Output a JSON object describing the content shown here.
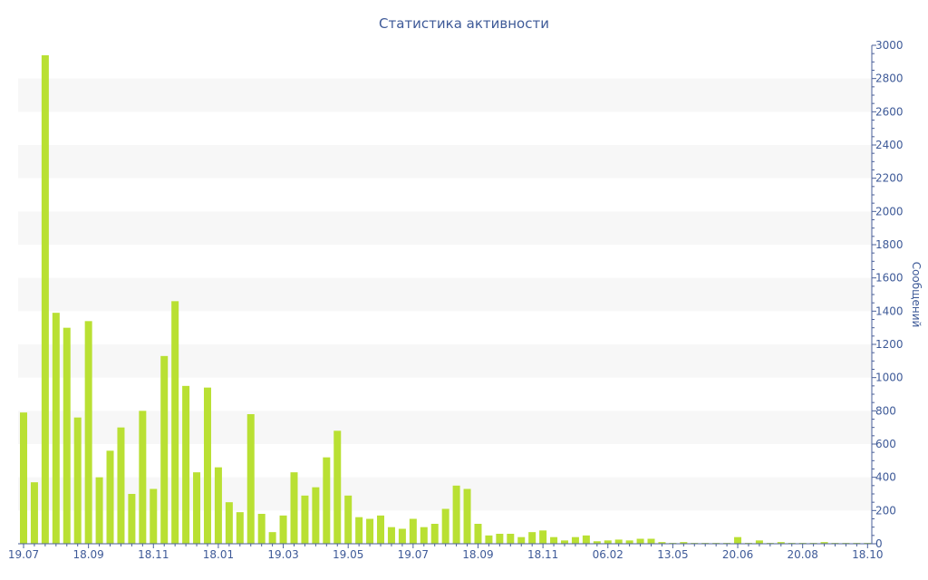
{
  "chart_data": {
    "type": "bar",
    "title": "Статистика активности",
    "ylabel": "Сообщений",
    "xlabel": "",
    "ylim": [
      0,
      3000
    ],
    "y_ticks": [
      0,
      200,
      400,
      600,
      800,
      1000,
      1200,
      1400,
      1600,
      1800,
      2000,
      2200,
      2400,
      2600,
      2800,
      3000
    ],
    "y_axis_position": "right",
    "grid": "alternating horizontal bands",
    "bar_color": "#b9e033",
    "text_color": "#3e5a98",
    "x_tick_labels": [
      "19.07",
      "18.09",
      "18.11",
      "18.01",
      "19.03",
      "19.05",
      "19.07",
      "18.09",
      "18.11",
      "06.02",
      "13.05",
      "20.06",
      "20.08",
      "18.10"
    ],
    "x_tick_bar_index": [
      0,
      6,
      12,
      18,
      24,
      30,
      36,
      42,
      48,
      54,
      60,
      66,
      72,
      78
    ],
    "series": [
      {
        "values": [
          790,
          370,
          2940,
          1390,
          1300,
          760,
          1340,
          400,
          560,
          700,
          300,
          800,
          330,
          1130,
          1460,
          950,
          430,
          940,
          460,
          250,
          190,
          780,
          180,
          70,
          170,
          430,
          290,
          340,
          520,
          680,
          290,
          160,
          150,
          170,
          100,
          90,
          150,
          100,
          120,
          210,
          350,
          330,
          120,
          50,
          60,
          60,
          40,
          70,
          80,
          40,
          20,
          40,
          50,
          15,
          20,
          25,
          20,
          30,
          30,
          10,
          5,
          10,
          5,
          5,
          5,
          5,
          40,
          5,
          20,
          5,
          10,
          5,
          5,
          5,
          10,
          5,
          5,
          5,
          5
        ]
      }
    ]
  }
}
